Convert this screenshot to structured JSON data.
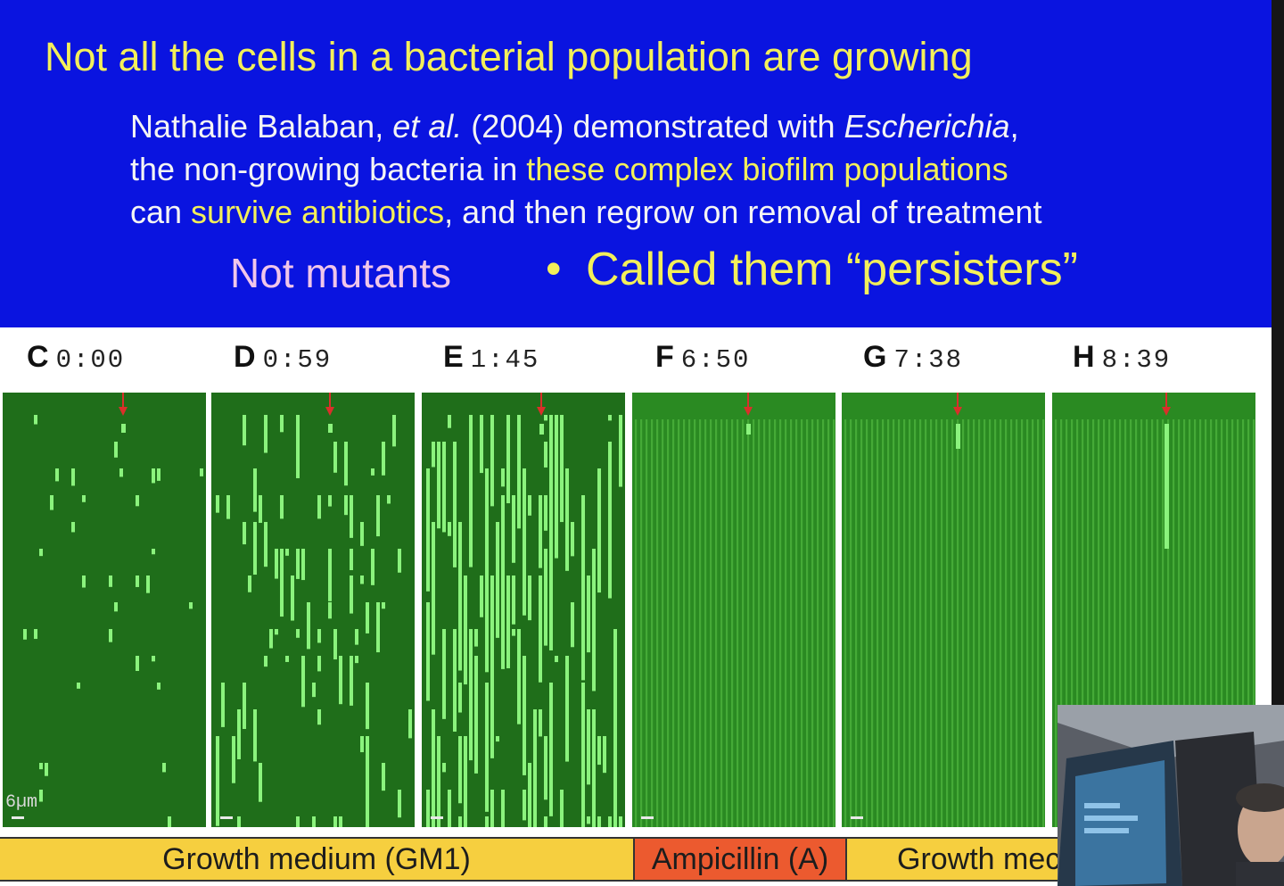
{
  "slide": {
    "title": "Not all the cells in a bacterial population are growing",
    "text": {
      "l1_a": "Nathalie Balaban, ",
      "l1_b": "et al.",
      "l1_c": " (2004) demonstrated with ",
      "l1_d": "Escherichia",
      "l1_e": ",",
      "l2_a": "the non-growing bacteria in ",
      "l2_b": "these complex biofilm populations",
      "l3_a": "can ",
      "l3_b": "survive antibiotics",
      "l3_c": ", and then regrow on removal of treatment"
    },
    "not_mutants": "Not mutants",
    "bullet": "•",
    "called_them": "Called them “persisters”"
  },
  "figure": {
    "panels": [
      {
        "letter": "C",
        "time": "0:00"
      },
      {
        "letter": "D",
        "time": "0:59"
      },
      {
        "letter": "E",
        "time": "1:45"
      },
      {
        "letter": "F",
        "time": "6:50"
      },
      {
        "letter": "G",
        "time": "7:38"
      },
      {
        "letter": "H",
        "time": "8:39"
      }
    ],
    "scale_label": "6µm",
    "conditions": {
      "growth_1": "Growth medium (GM1)",
      "ampicillin": "Ampicillin (A)",
      "growth_2": "Growth mec"
    }
  },
  "colors": {
    "header_bg": "#0a14e0",
    "title_yellow": "#f3ef5a",
    "panel_green": "#1f6e1a",
    "cell_green": "#8bf37d",
    "marker_red": "#d9302a",
    "growth_bar": "#f6cf3f",
    "ampicillin_bar": "#ec5a2f"
  }
}
